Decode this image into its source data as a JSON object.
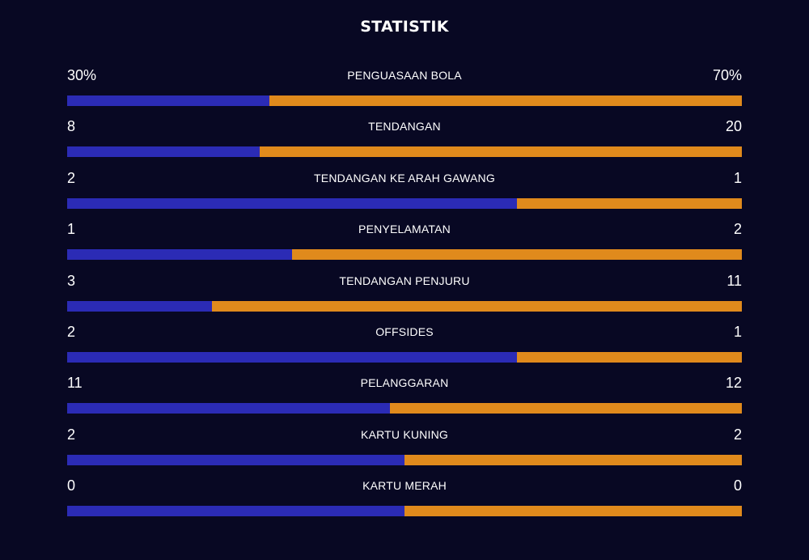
{
  "title": "STATISTIK",
  "colors": {
    "home": "#2b2bb5",
    "away": "#e08a1c",
    "background": "#080823"
  },
  "stats": [
    {
      "label": "PENGUASAAN BOLA",
      "home": "30%",
      "away": "70%",
      "home_share": 0.3
    },
    {
      "label": "TENDANGAN",
      "home": "8",
      "away": "20",
      "home_share": 0.2857
    },
    {
      "label": "TENDANGAN KE ARAH GAWANG",
      "home": "2",
      "away": "1",
      "home_share": 0.6667
    },
    {
      "label": "PENYELAMATAN",
      "home": "1",
      "away": "2",
      "home_share": 0.3333
    },
    {
      "label": "TENDANGAN PENJURU",
      "home": "3",
      "away": "11",
      "home_share": 0.2143
    },
    {
      "label": "OFFSIDES",
      "home": "2",
      "away": "1",
      "home_share": 0.6667
    },
    {
      "label": "PELANGGARAN",
      "home": "11",
      "away": "12",
      "home_share": 0.4783
    },
    {
      "label": "KARTU KUNING",
      "home": "2",
      "away": "2",
      "home_share": 0.5
    },
    {
      "label": "KARTU MERAH",
      "home": "0",
      "away": "0",
      "home_share": 0.5
    }
  ]
}
